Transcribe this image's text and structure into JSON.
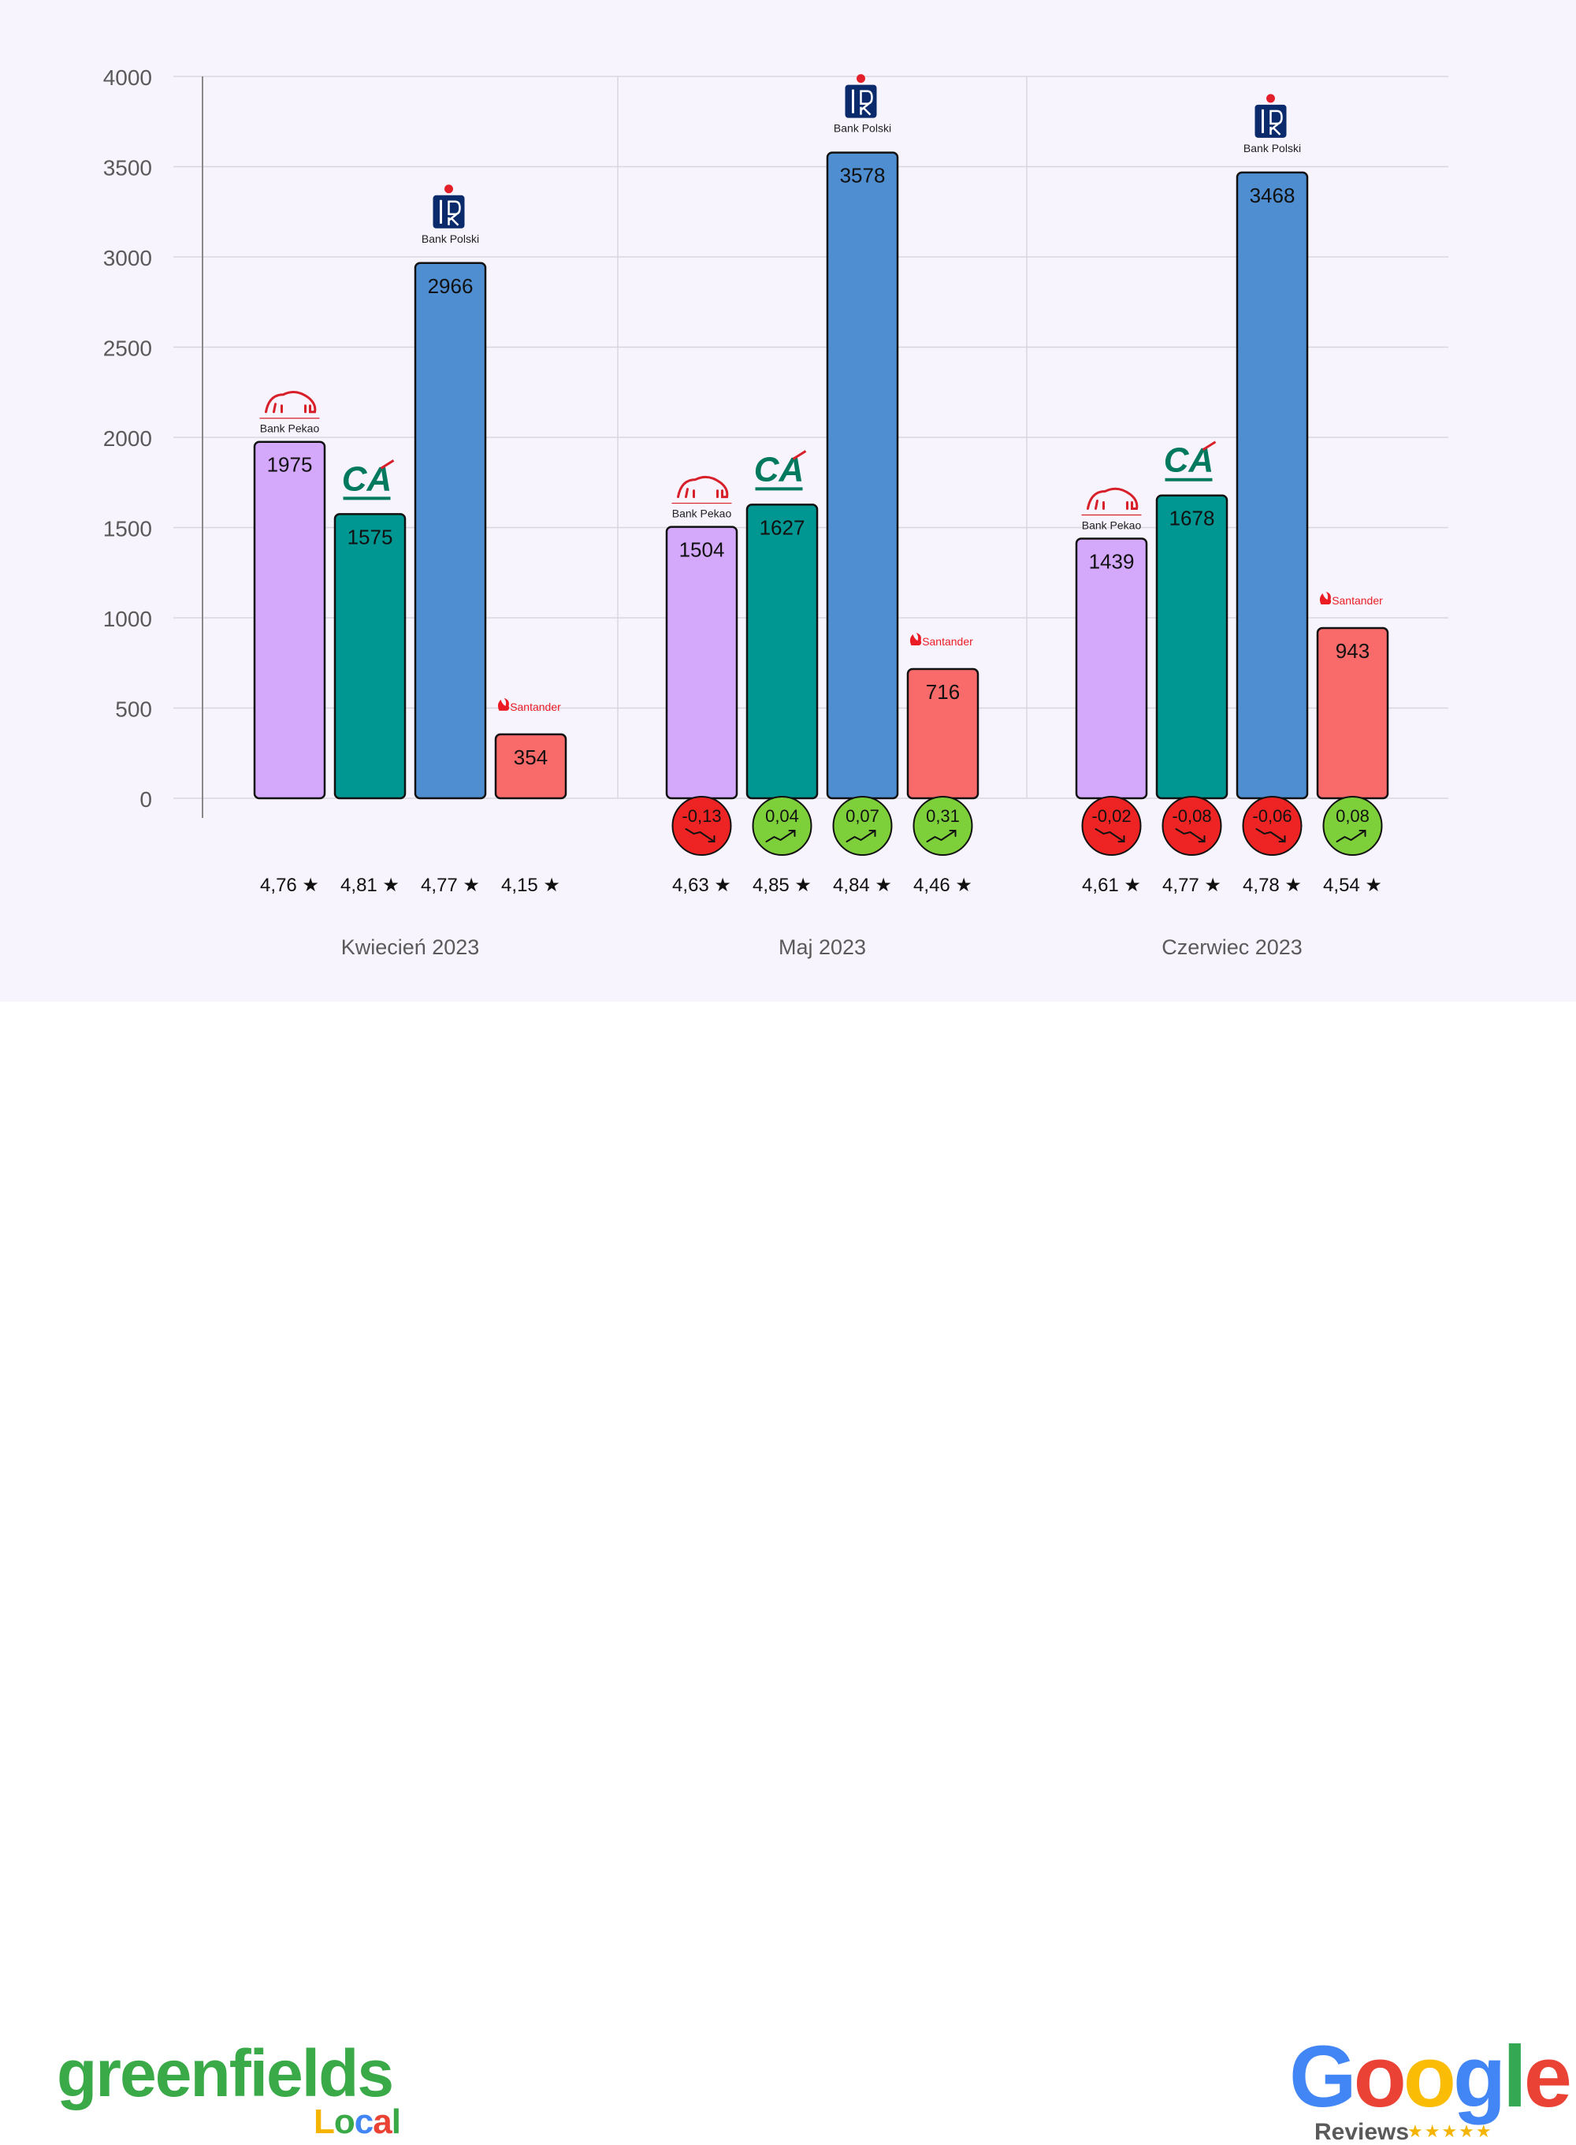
{
  "chart_data": {
    "type": "bar",
    "title": "",
    "xlabel": "",
    "ylabel": "",
    "ylim": [
      0,
      4000
    ],
    "yticks": [
      "0",
      "500",
      "1000",
      "1500",
      "2000",
      "2500",
      "3000",
      "3500",
      "4000"
    ],
    "grid": true,
    "legend": "none",
    "categories": [
      "Kwiecień 2023",
      "Maj 2023",
      "Czerwiec 2023"
    ],
    "series": [
      {
        "key": "pekao",
        "logo": "Bank Pekao",
        "color": "#d4a8fb",
        "values": [
          1975,
          1504,
          1439
        ],
        "labels": [
          "1975",
          "1504",
          "1439"
        ],
        "ratings": [
          "4,76",
          "4,63",
          "4,61"
        ],
        "changes": [
          null,
          "-0,13",
          "-0,02"
        ],
        "trends": [
          null,
          "down",
          "down"
        ]
      },
      {
        "key": "credit-agricole",
        "logo": "CA",
        "color": "#009691",
        "values": [
          1575,
          1627,
          1678
        ],
        "labels": [
          "1575",
          "1627",
          "1678"
        ],
        "ratings": [
          "4,81",
          "4,85",
          "4,77"
        ],
        "changes": [
          null,
          "0,04",
          "-0,08"
        ],
        "trends": [
          null,
          "up",
          "down"
        ]
      },
      {
        "key": "pko",
        "logo": "Bank Polski",
        "color": "#4f8ed0",
        "values": [
          2966,
          3578,
          3468
        ],
        "labels": [
          "2966",
          "3578",
          "3468"
        ],
        "ratings": [
          "4,77",
          "4,84",
          "4,78"
        ],
        "changes": [
          null,
          "0,07",
          "-0,06"
        ],
        "trends": [
          null,
          "up",
          "down"
        ]
      },
      {
        "key": "santander",
        "logo": "Santander",
        "color": "#f96a6a",
        "values": [
          354,
          716,
          943
        ],
        "labels": [
          "354",
          "716",
          "943"
        ],
        "ratings": [
          "4,15",
          "4,46",
          "4,54"
        ],
        "changes": [
          null,
          "0,31",
          "0,08"
        ],
        "trends": [
          null,
          "up",
          "up"
        ]
      }
    ],
    "star": "★",
    "colors": {
      "up": "#7ed03b",
      "down": "#ee2424",
      "grid": "#d9d6de",
      "axis": "#8a8a8a",
      "text": "#5a5a5a"
    }
  },
  "footer": {
    "greenfields": {
      "word": "greenfields",
      "sub": "Local",
      "sub_colors": [
        "#f4b400",
        "#3aa947",
        "#4285f4",
        "#ea4335",
        "#3aa947"
      ]
    },
    "google": {
      "word": "Google",
      "letter_colors": [
        "#4285f4",
        "#ea4335",
        "#fbbc05",
        "#4285f4",
        "#34a853",
        "#ea4335"
      ],
      "reviews_label": "Reviews",
      "stars": "★★★★★"
    }
  }
}
